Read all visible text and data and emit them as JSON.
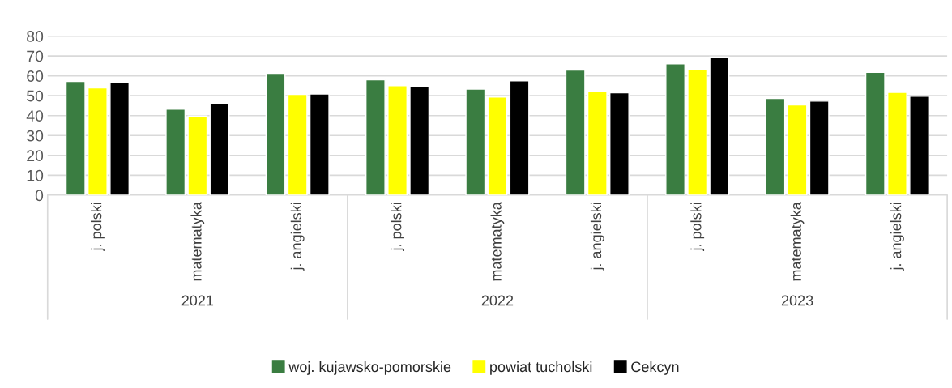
{
  "chart_data": {
    "type": "bar",
    "categories": [
      "j. polski",
      "matematyka",
      "j. angielski",
      "j. polski",
      "matematyka",
      "j. angielski",
      "j. polski",
      "matematyka",
      "j. angielski"
    ],
    "annotations": [
      "2021",
      "2022",
      "2023"
    ],
    "series": [
      {
        "name": "woj. kujawsko-pomorskie",
        "color": "#3a7d41",
        "values": [
          57.2,
          43.2,
          61.3,
          58.0,
          53.3,
          62.9,
          66.0,
          48.6,
          61.8
        ]
      },
      {
        "name": "powiat tucholski",
        "color": "#ffff00",
        "values": [
          53.9,
          39.8,
          50.7,
          55.0,
          49.3,
          52.0,
          63.1,
          45.4,
          51.7
        ]
      },
      {
        "name": "Cekcyn",
        "color": "#000000",
        "values": [
          56.7,
          46.0,
          50.9,
          54.5,
          57.5,
          51.5,
          69.5,
          47.3,
          49.8
        ]
      }
    ],
    "ylim": [
      0,
      80
    ],
    "yticks": [
      0,
      10,
      20,
      30,
      40,
      50,
      60,
      70,
      80
    ],
    "grid": "y",
    "legend": "bottom"
  }
}
